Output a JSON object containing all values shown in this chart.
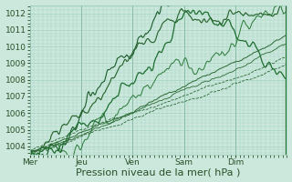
{
  "title": "",
  "xlabel": "Pression niveau de la mer( hPa )",
  "ylim": [
    1003.5,
    1012.5
  ],
  "yticks": [
    1004,
    1005,
    1006,
    1007,
    1008,
    1009,
    1010,
    1011,
    1012
  ],
  "day_labels": [
    "Mer",
    "Jeu",
    "Ven",
    "Sam",
    "Dim"
  ],
  "day_positions": [
    0,
    60,
    120,
    180,
    240
  ],
  "xlim": [
    0,
    300
  ],
  "background_color": "#cce8dd",
  "grid_color": "#99ccbb",
  "text_color": "#2a5028",
  "font_size_label": 8,
  "font_size_tick": 6.5,
  "line_color_dark": "#1a5c2a",
  "line_color_med": "#2d7a3a"
}
